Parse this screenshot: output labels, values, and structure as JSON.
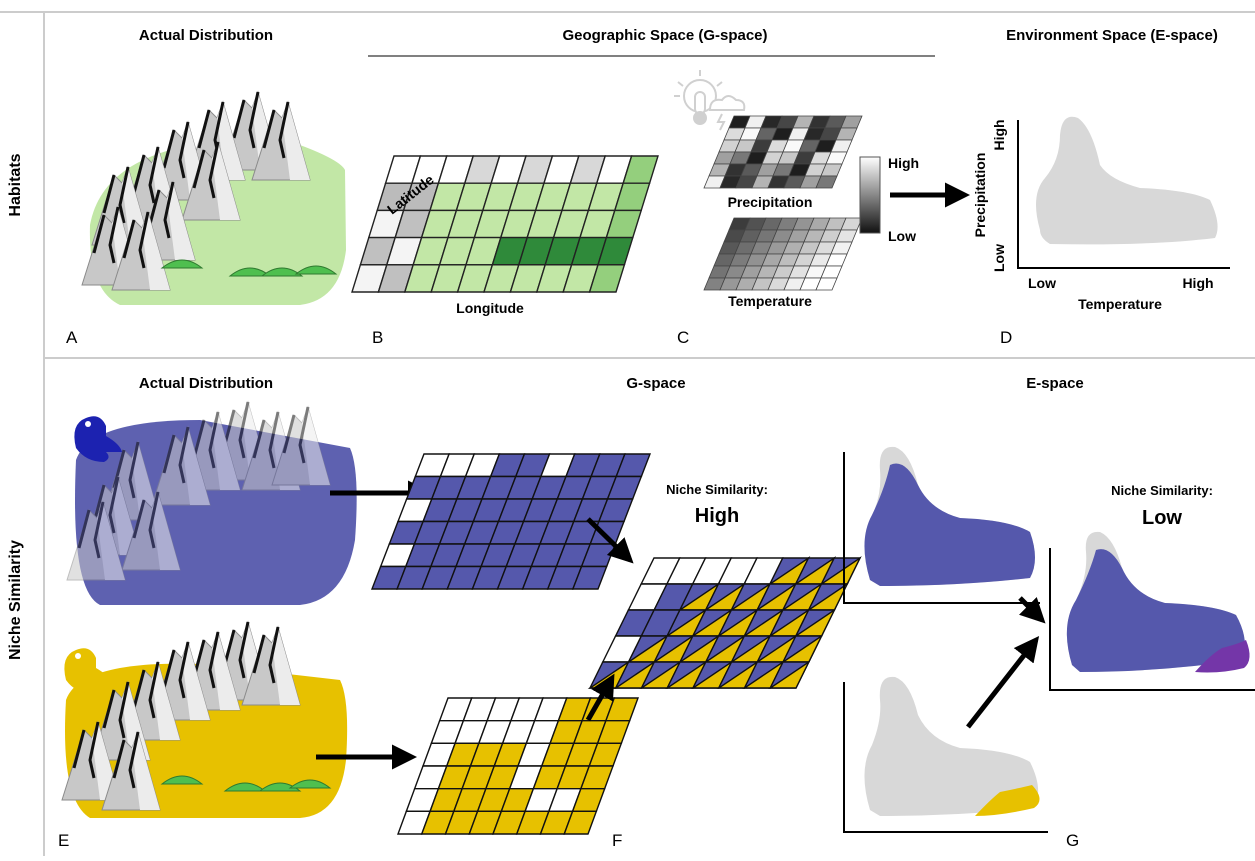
{
  "rows": {
    "habitats": "Habitats",
    "niche": "Niche Similarity"
  },
  "top": {
    "actual_title": "Actual Distribution",
    "gspace_title": "Geographic Space (G-space)",
    "espace_title": "Environment Space (E-space)",
    "latitude": "Latitude",
    "longitude": "Longitude",
    "precipitation": "Precipitation",
    "temperature": "Temperature",
    "scale_high": "High",
    "scale_low": "Low",
    "plot": {
      "ylabel": "Precipitation",
      "xlabel": "Temperature",
      "y_high": "High",
      "y_low": "Low",
      "x_low": "Low",
      "x_high": "High"
    }
  },
  "bottom": {
    "actual_title": "Actual Distribution",
    "gspace_title": "G-space",
    "espace_title": "E-space",
    "niche_g": {
      "label": "Niche Similarity:",
      "value": "High"
    },
    "niche_e": {
      "label": "Niche Similarity:",
      "value": "Low"
    }
  },
  "panel_letters": {
    "A": "A",
    "B": "B",
    "C": "C",
    "D": "D",
    "E": "E",
    "F": "F",
    "G": "G"
  },
  "colors": {
    "green_light": "#c2e7a6",
    "green_mid": "#94cf7d",
    "green_dark": "#2f8a3a",
    "blue": "#5558ac",
    "yellow": "#e7c100",
    "purple": "#7436a8",
    "grey_blob": "#d8d8d8",
    "frame": "#cccccc"
  },
  "icons": [
    "mountain-range-icon",
    "weather-icon",
    "frog-blue-icon",
    "frog-yellow-icon",
    "arrow-icon"
  ]
}
